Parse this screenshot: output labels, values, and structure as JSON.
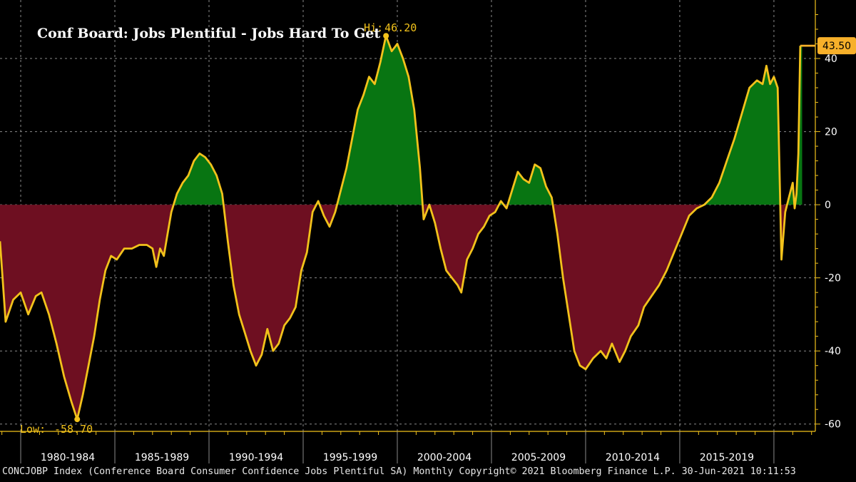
{
  "colors": {
    "background": "#000000",
    "line": "#f2c21b",
    "positive_fill": "#087512",
    "negative_fill": "#6e0f21",
    "last_value_tag": "#f7b02a",
    "grid": "#8a8a8a",
    "text": "#ffffff"
  },
  "footer": "CONCJOBP Index (Conference Board Consumer Confidence Jobs Plentiful SA)  Monthly Copyright© 2021 Bloomberg Finance L.P. 30-Jun-2021 10:11:53",
  "chart_data": {
    "type": "area",
    "title": "Conf Board: Jobs Plentiful - Jobs Hard To Get",
    "ylim": [
      -62,
      56
    ],
    "yticks": [
      40,
      20,
      0,
      -20,
      -40,
      -60
    ],
    "xlim": [
      1978.9,
      2022.2
    ],
    "x_period_labels": [
      "1980-1984",
      "1985-1989",
      "1990-1994",
      "1995-1999",
      "2000-2004",
      "2005-2009",
      "2010-2014",
      "2015-2019"
    ],
    "grid": true,
    "annotations": {
      "high": {
        "label": "Hi:",
        "value": "46.20",
        "x": 1999.4,
        "y": 46.2
      },
      "low": {
        "label": "Low:",
        "value": "-58.70",
        "x": 1983.0,
        "y": -58.7
      },
      "last": {
        "value": "43.50",
        "y": 43.5
      }
    },
    "series": [
      {
        "points": [
          [
            1978.9,
            -10
          ],
          [
            1979.2,
            -32
          ],
          [
            1979.6,
            -26
          ],
          [
            1980.0,
            -24
          ],
          [
            1980.4,
            -30
          ],
          [
            1980.8,
            -25
          ],
          [
            1981.1,
            -24
          ],
          [
            1981.5,
            -30
          ],
          [
            1981.9,
            -38
          ],
          [
            1982.3,
            -47
          ],
          [
            1982.7,
            -54
          ],
          [
            1983.0,
            -58.7
          ],
          [
            1983.3,
            -52
          ],
          [
            1983.6,
            -44
          ],
          [
            1983.9,
            -36
          ],
          [
            1984.2,
            -26
          ],
          [
            1984.5,
            -18
          ],
          [
            1984.8,
            -14
          ],
          [
            1985.1,
            -15
          ],
          [
            1985.5,
            -12
          ],
          [
            1985.9,
            -12
          ],
          [
            1986.3,
            -11
          ],
          [
            1986.7,
            -11
          ],
          [
            1987.0,
            -12
          ],
          [
            1987.2,
            -17
          ],
          [
            1987.4,
            -12
          ],
          [
            1987.6,
            -14
          ],
          [
            1987.8,
            -8
          ],
          [
            1988.0,
            -2
          ],
          [
            1988.3,
            3
          ],
          [
            1988.6,
            6
          ],
          [
            1988.9,
            8
          ],
          [
            1989.2,
            12
          ],
          [
            1989.5,
            14
          ],
          [
            1989.8,
            13
          ],
          [
            1990.1,
            11
          ],
          [
            1990.4,
            8
          ],
          [
            1990.7,
            3
          ],
          [
            1991.0,
            -10
          ],
          [
            1991.3,
            -22
          ],
          [
            1991.6,
            -30
          ],
          [
            1991.9,
            -35
          ],
          [
            1992.2,
            -40
          ],
          [
            1992.5,
            -44
          ],
          [
            1992.8,
            -41
          ],
          [
            1993.1,
            -34
          ],
          [
            1993.4,
            -40
          ],
          [
            1993.7,
            -38
          ],
          [
            1994.0,
            -33
          ],
          [
            1994.3,
            -31
          ],
          [
            1994.6,
            -28
          ],
          [
            1994.9,
            -18
          ],
          [
            1995.2,
            -13
          ],
          [
            1995.5,
            -2
          ],
          [
            1995.8,
            1
          ],
          [
            1996.1,
            -3
          ],
          [
            1996.4,
            -6
          ],
          [
            1996.7,
            -2
          ],
          [
            1997.0,
            4
          ],
          [
            1997.3,
            10
          ],
          [
            1997.6,
            18
          ],
          [
            1997.9,
            26
          ],
          [
            1998.2,
            30
          ],
          [
            1998.5,
            35
          ],
          [
            1998.8,
            33
          ],
          [
            1999.1,
            39
          ],
          [
            1999.4,
            46.2
          ],
          [
            1999.7,
            42
          ],
          [
            2000.0,
            44
          ],
          [
            2000.3,
            40
          ],
          [
            2000.6,
            35
          ],
          [
            2000.9,
            26
          ],
          [
            2001.2,
            10
          ],
          [
            2001.4,
            -4
          ],
          [
            2001.7,
            0
          ],
          [
            2002.0,
            -5
          ],
          [
            2002.3,
            -12
          ],
          [
            2002.6,
            -18
          ],
          [
            2002.9,
            -20
          ],
          [
            2003.2,
            -22
          ],
          [
            2003.4,
            -24
          ],
          [
            2003.7,
            -15
          ],
          [
            2004.0,
            -12
          ],
          [
            2004.3,
            -8
          ],
          [
            2004.6,
            -6
          ],
          [
            2004.9,
            -3
          ],
          [
            2005.2,
            -2
          ],
          [
            2005.5,
            1
          ],
          [
            2005.8,
            -1
          ],
          [
            2006.1,
            4
          ],
          [
            2006.4,
            9
          ],
          [
            2006.7,
            7
          ],
          [
            2007.0,
            6
          ],
          [
            2007.3,
            11
          ],
          [
            2007.6,
            10
          ],
          [
            2007.9,
            5
          ],
          [
            2008.2,
            2
          ],
          [
            2008.5,
            -8
          ],
          [
            2008.8,
            -20
          ],
          [
            2009.1,
            -30
          ],
          [
            2009.4,
            -40
          ],
          [
            2009.7,
            -44
          ],
          [
            2010.0,
            -45
          ],
          [
            2010.4,
            -42
          ],
          [
            2010.8,
            -40
          ],
          [
            2011.1,
            -42
          ],
          [
            2011.4,
            -38
          ],
          [
            2011.8,
            -43
          ],
          [
            2012.1,
            -40
          ],
          [
            2012.4,
            -36
          ],
          [
            2012.8,
            -33
          ],
          [
            2013.1,
            -28
          ],
          [
            2013.5,
            -25
          ],
          [
            2013.9,
            -22
          ],
          [
            2014.3,
            -18
          ],
          [
            2014.7,
            -13
          ],
          [
            2015.1,
            -8
          ],
          [
            2015.5,
            -3
          ],
          [
            2015.9,
            -1
          ],
          [
            2016.3,
            0
          ],
          [
            2016.7,
            2
          ],
          [
            2017.1,
            6
          ],
          [
            2017.5,
            12
          ],
          [
            2017.9,
            18
          ],
          [
            2018.3,
            25
          ],
          [
            2018.7,
            32
          ],
          [
            2019.1,
            34
          ],
          [
            2019.4,
            33
          ],
          [
            2019.6,
            38
          ],
          [
            2019.8,
            33
          ],
          [
            2020.0,
            35
          ],
          [
            2020.2,
            32
          ],
          [
            2020.4,
            -15
          ],
          [
            2020.6,
            -2
          ],
          [
            2020.8,
            2
          ],
          [
            2021.0,
            6
          ],
          [
            2021.1,
            -1
          ],
          [
            2021.2,
            3
          ],
          [
            2021.3,
            14
          ],
          [
            2021.4,
            43.5
          ],
          [
            2021.5,
            43.5
          ]
        ]
      }
    ]
  }
}
